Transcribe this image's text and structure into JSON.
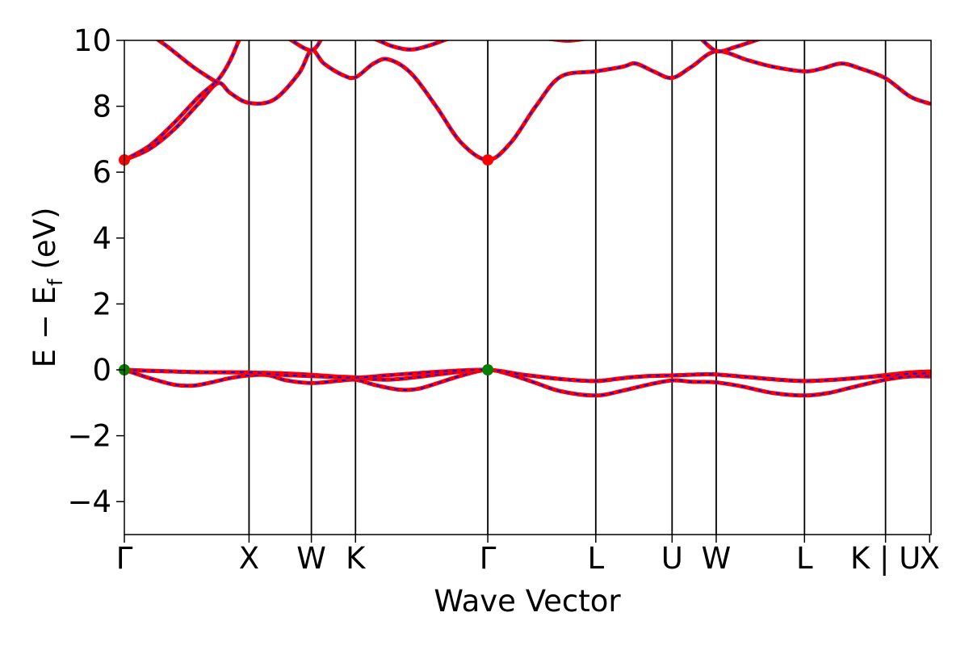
{
  "chart_data": {
    "type": "line",
    "title": "",
    "xlabel": "Wave Vector",
    "ylabel": {
      "prefix": "E − E",
      "subscript": "f",
      "suffix": " (eV)"
    },
    "ylim": [
      -5,
      10
    ],
    "yticks": [
      -4,
      -2,
      0,
      2,
      4,
      6,
      8,
      10
    ],
    "ytick_labels": [
      "−4",
      "−2",
      "0",
      "2",
      "4",
      "6",
      "8",
      "10"
    ],
    "xlim": [
      0,
      6.47
    ],
    "kpath": [
      {
        "label": "Γ",
        "x": 0.0
      },
      {
        "label": "X",
        "x": 1.0
      },
      {
        "label": "W",
        "x": 1.5
      },
      {
        "label": "K",
        "x": 1.854
      },
      {
        "label": "Γ",
        "x": 2.915
      },
      {
        "label": "L",
        "x": 3.781
      },
      {
        "label": "U",
        "x": 4.393
      },
      {
        "label": "W",
        "x": 4.747
      },
      {
        "label": "L",
        "x": 5.455
      },
      {
        "label": "K | U",
        "x": 6.105
      },
      {
        "label": "X",
        "x": 6.459
      }
    ],
    "line_colors": {
      "underlay": "#ff0000",
      "dash": "#0000ff"
    },
    "markers": [
      {
        "x": 0.0,
        "y": 6.37,
        "color": "#ff0000"
      },
      {
        "x": 2.915,
        "y": 6.37,
        "color": "#ff0000"
      },
      {
        "x": 0.0,
        "y": 0.0,
        "color": "#008000"
      },
      {
        "x": 2.915,
        "y": 0.0,
        "color": "#008000"
      }
    ],
    "series": [
      {
        "points": [
          [
            0,
            6.37
          ],
          [
            0.2,
            6.7
          ],
          [
            0.4,
            7.3
          ],
          [
            0.6,
            8.1
          ],
          [
            0.75,
            8.7
          ],
          [
            0.85,
            8.4
          ],
          [
            1.0,
            8.1
          ],
          [
            1.2,
            8.2
          ],
          [
            1.4,
            9.0
          ],
          [
            1.5,
            9.7
          ],
          [
            1.6,
            9.3
          ],
          [
            1.75,
            8.95
          ],
          [
            1.854,
            8.88
          ],
          [
            2.0,
            9.3
          ],
          [
            2.12,
            9.42
          ],
          [
            2.3,
            9.0
          ],
          [
            2.5,
            8.0
          ],
          [
            2.7,
            6.9
          ],
          [
            2.915,
            6.37
          ],
          [
            3.1,
            6.9
          ],
          [
            3.3,
            8.0
          ],
          [
            3.5,
            8.9
          ],
          [
            3.781,
            9.06
          ],
          [
            4.0,
            9.2
          ],
          [
            4.1,
            9.3
          ],
          [
            4.25,
            9.05
          ],
          [
            4.393,
            8.86
          ],
          [
            4.55,
            9.2
          ],
          [
            4.747,
            9.67
          ],
          [
            5.0,
            9.4
          ],
          [
            5.2,
            9.2
          ],
          [
            5.455,
            9.06
          ],
          [
            5.6,
            9.15
          ],
          [
            5.75,
            9.3
          ],
          [
            5.9,
            9.15
          ],
          [
            6.105,
            8.85
          ],
          [
            6.3,
            8.3
          ],
          [
            6.459,
            8.08
          ]
        ]
      },
      {
        "points": [
          [
            0,
            6.37
          ],
          [
            0.2,
            6.8
          ],
          [
            0.4,
            7.5
          ],
          [
            0.6,
            8.3
          ],
          [
            0.75,
            8.8
          ],
          [
            0.85,
            9.4
          ],
          [
            0.95,
            10.3
          ]
        ]
      },
      {
        "points": [
          [
            0.2,
            10.2
          ],
          [
            0.35,
            9.8
          ],
          [
            0.55,
            9.2
          ],
          [
            0.75,
            8.7
          ]
        ]
      },
      {
        "points": [
          [
            1.3,
            10.1
          ],
          [
            1.5,
            9.7
          ],
          [
            1.6,
            10.2
          ]
        ]
      },
      {
        "points": [
          [
            1.854,
            10.15
          ],
          [
            2.0,
            10.05
          ],
          [
            2.15,
            9.82
          ],
          [
            2.3,
            9.72
          ],
          [
            2.45,
            9.85
          ],
          [
            2.6,
            10.05
          ],
          [
            2.7,
            10.15
          ]
        ]
      },
      {
        "points": [
          [
            3.4,
            10.05
          ],
          [
            3.55,
            9.99
          ],
          [
            3.7,
            10.05
          ]
        ]
      },
      {
        "points": [
          [
            4.6,
            10.15
          ],
          [
            4.747,
            9.68
          ],
          [
            4.9,
            9.8
          ],
          [
            5.1,
            10.05
          ],
          [
            5.2,
            10.2
          ]
        ]
      },
      {
        "points": [
          [
            0,
            0.0
          ],
          [
            0.2,
            -0.25
          ],
          [
            0.4,
            -0.45
          ],
          [
            0.55,
            -0.48
          ],
          [
            0.7,
            -0.38
          ],
          [
            0.85,
            -0.25
          ],
          [
            1.0,
            -0.17
          ],
          [
            1.15,
            -0.16
          ],
          [
            1.3,
            -0.32
          ],
          [
            1.5,
            -0.4
          ],
          [
            1.7,
            -0.34
          ],
          [
            1.854,
            -0.3
          ],
          [
            2.0,
            -0.45
          ],
          [
            2.2,
            -0.6
          ],
          [
            2.35,
            -0.58
          ],
          [
            2.5,
            -0.42
          ],
          [
            2.7,
            -0.18
          ],
          [
            2.915,
            0.0
          ],
          [
            3.1,
            -0.15
          ],
          [
            3.3,
            -0.4
          ],
          [
            3.5,
            -0.65
          ],
          [
            3.781,
            -0.78
          ],
          [
            4.0,
            -0.63
          ],
          [
            4.2,
            -0.45
          ],
          [
            4.393,
            -0.32
          ],
          [
            4.55,
            -0.36
          ],
          [
            4.747,
            -0.38
          ],
          [
            4.95,
            -0.5
          ],
          [
            5.2,
            -0.7
          ],
          [
            5.455,
            -0.78
          ],
          [
            5.65,
            -0.7
          ],
          [
            5.85,
            -0.52
          ],
          [
            6.105,
            -0.3
          ],
          [
            6.3,
            -0.2
          ],
          [
            6.459,
            -0.2
          ]
        ]
      },
      {
        "points": [
          [
            0,
            0.0
          ],
          [
            0.3,
            -0.04
          ],
          [
            0.6,
            -0.07
          ],
          [
            1.0,
            -0.08
          ],
          [
            1.25,
            -0.1
          ],
          [
            1.5,
            -0.15
          ],
          [
            1.7,
            -0.2
          ],
          [
            1.854,
            -0.23
          ],
          [
            2.1,
            -0.3
          ],
          [
            2.35,
            -0.22
          ],
          [
            2.6,
            -0.1
          ],
          [
            2.915,
            0.0
          ],
          [
            3.2,
            -0.15
          ],
          [
            3.5,
            -0.28
          ],
          [
            3.781,
            -0.34
          ],
          [
            4.0,
            -0.25
          ],
          [
            4.2,
            -0.19
          ],
          [
            4.393,
            -0.17
          ],
          [
            4.6,
            -0.14
          ],
          [
            4.747,
            -0.14
          ],
          [
            5.0,
            -0.22
          ],
          [
            5.25,
            -0.3
          ],
          [
            5.455,
            -0.34
          ],
          [
            5.7,
            -0.3
          ],
          [
            5.9,
            -0.24
          ],
          [
            6.105,
            -0.16
          ],
          [
            6.3,
            -0.08
          ],
          [
            6.459,
            -0.05
          ]
        ]
      },
      {
        "points": [
          [
            0,
            0.0
          ],
          [
            0.3,
            -0.04
          ],
          [
            0.6,
            -0.07
          ],
          [
            1.0,
            -0.08
          ],
          [
            1.25,
            -0.15
          ],
          [
            1.5,
            -0.19
          ],
          [
            1.7,
            -0.22
          ],
          [
            1.854,
            -0.24
          ],
          [
            2.1,
            -0.17
          ],
          [
            2.35,
            -0.1
          ],
          [
            2.6,
            -0.04
          ],
          [
            2.915,
            0.0
          ],
          [
            3.2,
            -0.15
          ],
          [
            3.5,
            -0.28
          ],
          [
            3.781,
            -0.34
          ],
          [
            4.0,
            -0.25
          ],
          [
            4.2,
            -0.19
          ],
          [
            4.393,
            -0.17
          ],
          [
            4.6,
            -0.14
          ],
          [
            4.747,
            -0.14
          ],
          [
            5.0,
            -0.22
          ],
          [
            5.25,
            -0.3
          ],
          [
            5.455,
            -0.34
          ],
          [
            5.7,
            -0.3
          ],
          [
            5.9,
            -0.24
          ],
          [
            6.105,
            -0.18
          ],
          [
            6.3,
            -0.12
          ],
          [
            6.459,
            -0.1
          ]
        ]
      }
    ]
  }
}
